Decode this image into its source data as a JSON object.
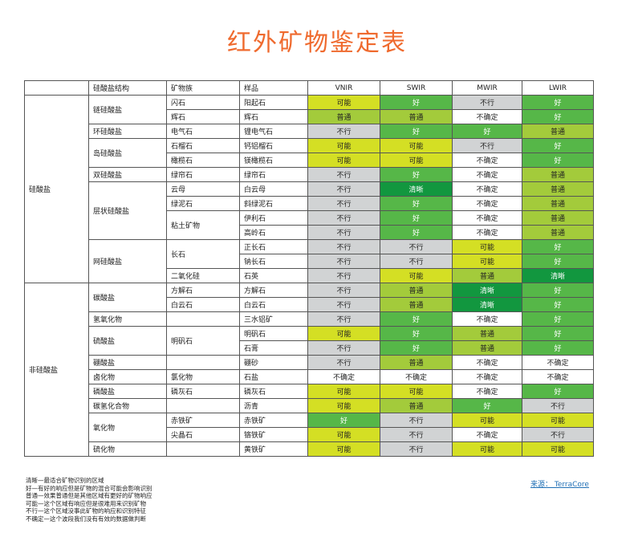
{
  "title": "红外矿物鉴定表",
  "headers": [
    "",
    "硅酸盐结构",
    "矿物族",
    "样品",
    "VNIR",
    "SWIR",
    "MWIR",
    "LWIR"
  ],
  "category_labels": [
    "硅酸盐",
    "非硅酸盐"
  ],
  "rows": [
    {
      "structure": "链硅酸盐",
      "group": "闪石",
      "sample": "阳起石",
      "r": [
        "可能",
        "好",
        "不行",
        "好"
      ]
    },
    {
      "structure": "",
      "group": "辉石",
      "sample": "辉石",
      "r": [
        "普通",
        "普通",
        "不确定",
        "好"
      ]
    },
    {
      "structure": "环硅酸盐",
      "group": "电气石",
      "sample": "锂电气石",
      "r": [
        "不行",
        "好",
        "好",
        "普通"
      ]
    },
    {
      "structure": "岛硅酸盐",
      "group": "石榴石",
      "sample": "钙铝榴石",
      "r": [
        "可能",
        "可能",
        "不行",
        "好"
      ]
    },
    {
      "structure": "",
      "group": "橄榄石",
      "sample": "镁橄榄石",
      "r": [
        "可能",
        "可能",
        "不确定",
        "好"
      ]
    },
    {
      "structure": "双硅酸盐",
      "group": "绿帘石",
      "sample": "绿帘石",
      "r": [
        "不行",
        "好",
        "不确定",
        "普通"
      ]
    },
    {
      "structure": "层状硅酸盐",
      "group": "云母",
      "sample": "白云母",
      "r": [
        "不行",
        "清晰",
        "不确定",
        "普通"
      ]
    },
    {
      "structure": "",
      "group": "绿泥石",
      "sample": "斜绿泥石",
      "r": [
        "不行",
        "好",
        "不确定",
        "普通"
      ]
    },
    {
      "structure": "",
      "group": "粘土矿物",
      "sample": "伊利石",
      "r": [
        "不行",
        "好",
        "不确定",
        "普通"
      ]
    },
    {
      "structure": "",
      "group": "",
      "sample": "高岭石",
      "r": [
        "不行",
        "好",
        "不确定",
        "普通"
      ]
    },
    {
      "structure": "网硅酸盐",
      "group": "长石",
      "sample": "正长石",
      "r": [
        "不行",
        "不行",
        "可能",
        "好"
      ]
    },
    {
      "structure": "",
      "group": "",
      "sample": "钠长石",
      "r": [
        "不行",
        "不行",
        "可能",
        "好"
      ]
    },
    {
      "structure": "",
      "group": "二氧化硅",
      "sample": "石英",
      "r": [
        "不行",
        "可能",
        "普通",
        "清晰"
      ]
    },
    {
      "structure": "碳酸盐",
      "group": "方解石",
      "sample": "方解石",
      "r": [
        "不行",
        "普通",
        "清晰",
        "好"
      ]
    },
    {
      "structure": "",
      "group": "白云石",
      "sample": "白云石",
      "r": [
        "不行",
        "普通",
        "清晰",
        "好"
      ]
    },
    {
      "structure": "氢氧化物",
      "group": "",
      "sample": "三水铝矿",
      "r": [
        "不行",
        "好",
        "不确定",
        "好"
      ]
    },
    {
      "structure": "硫酸盐",
      "group": "明矾石",
      "sample": "明矾石",
      "r": [
        "可能",
        "好",
        "普通",
        "好"
      ]
    },
    {
      "structure": "",
      "group": "",
      "sample": "石膏",
      "r": [
        "不行",
        "好",
        "普通",
        "好"
      ]
    },
    {
      "structure": "硼酸盐",
      "group": "",
      "sample": "硼砂",
      "r": [
        "不行",
        "普通",
        "不确定",
        "不确定"
      ]
    },
    {
      "structure": "卤化物",
      "group": "氯化物",
      "sample": "石盐",
      "r": [
        "不确定",
        "不确定",
        "不确定",
        "不确定"
      ]
    },
    {
      "structure": "磷酸盐",
      "group": "磷灰石",
      "sample": "磷灰石",
      "r": [
        "可能",
        "可能",
        "不确定",
        "好"
      ]
    },
    {
      "structure": "碳氢化合物",
      "group": "",
      "sample": "沥青",
      "r": [
        "可能",
        "普通",
        "好",
        "不行"
      ]
    },
    {
      "structure": "氧化物",
      "group": "赤铁矿",
      "sample": "赤铁矿",
      "r": [
        "好",
        "不行",
        "可能",
        "可能"
      ]
    },
    {
      "structure": "",
      "group": "尖晶石",
      "sample": "铬铁矿",
      "r": [
        "可能",
        "不行",
        "不确定",
        "不行"
      ]
    },
    {
      "structure": "硫化物",
      "group": "",
      "sample": "黄铁矿",
      "r": [
        "可能",
        "不行",
        "可能",
        "可能"
      ]
    }
  ],
  "legend": [
    "清晰—最适合矿物识别的区域",
    "好—有好的响应但是矿物的混合可能会影响识别",
    "普通—效果普通但是其他区域有更好的矿物响应",
    "可能—这个区域有响应但是很难用来识别矿物",
    "不行—这个区域没事此矿物的响应和识别特征",
    "不确定—这个波段我们没有有效的数据做判断"
  ],
  "source": "来源： TerraCore",
  "level_colors": {
    "清晰": "#12973f",
    "好": "#56b748",
    "普通": "#a3cb3b",
    "可能": "#d4df24",
    "不行": "#d1d3d4",
    "不确定": "#ffffff"
  },
  "accent_color": "#ef6a2e"
}
